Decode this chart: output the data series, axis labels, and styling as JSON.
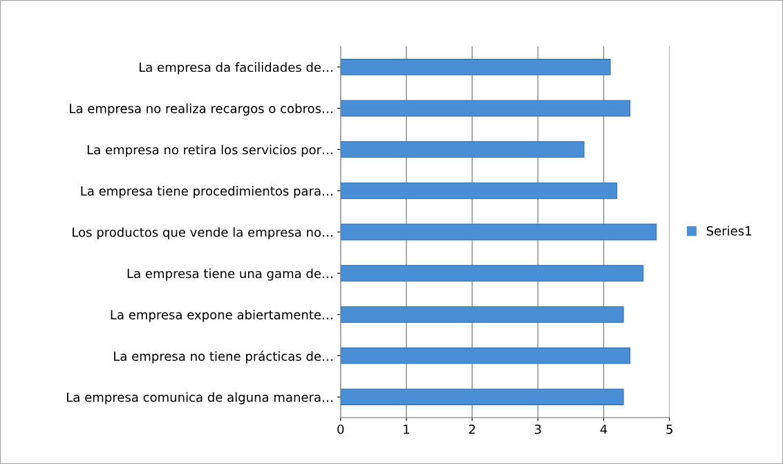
{
  "chart_data": {
    "type": "bar",
    "orientation": "horizontal",
    "categories": [
      "La empresa da facilidades de…",
      "La empresa no realiza recargos o cobros…",
      "La empresa no retira los servicios por…",
      "La empresa tiene procedimientos para…",
      "Los productos que vende la empresa no…",
      "La empresa tiene una gama de…",
      "La empresa expone abiertamente…",
      "La empresa no tiene prácticas de…",
      "La empresa comunica de alguna manera…"
    ],
    "series": [
      {
        "name": "Series1",
        "color": "#4a8ed6",
        "values": [
          4.1,
          4.4,
          3.7,
          4.2,
          4.8,
          4.6,
          4.3,
          4.4,
          4.3
        ]
      }
    ],
    "xlim": [
      0,
      5
    ],
    "xticks": [
      0,
      1,
      2,
      3,
      4,
      5
    ],
    "grid": "x",
    "legend": "right"
  }
}
